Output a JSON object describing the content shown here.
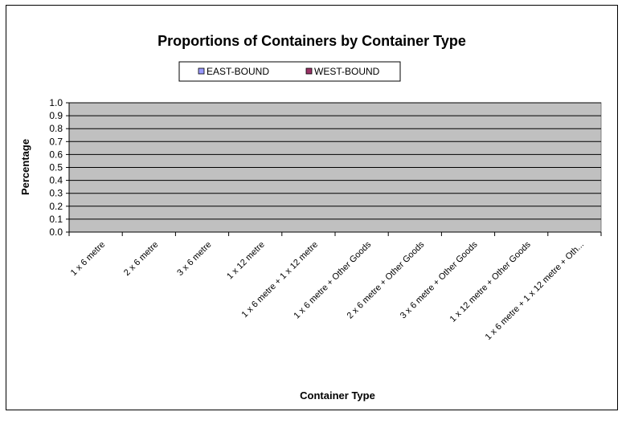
{
  "colors": {
    "plot_area": "#c0c0c0",
    "gridline": "#000000",
    "east_bound": "#9999ff",
    "west_bound": "#993366"
  },
  "chart_data": {
    "type": "bar",
    "title": "Proportions of Containers by Container Type",
    "xlabel": "Container Type",
    "ylabel": "Percentage",
    "ylim": [
      0,
      1
    ],
    "yticks": [
      "0.0",
      "0.1",
      "0.2",
      "0.3",
      "0.4",
      "0.5",
      "0.6",
      "0.7",
      "0.8",
      "0.9",
      "1.0"
    ],
    "categories": [
      "1 x 6 metre",
      "2 x 6 metre",
      "3 x 6 metre",
      "1 x 12 metre",
      "1 x 6 metre + 1 x 12 metre",
      "1 x 6 metre + Other Goods",
      "2 x 6 metre + Other Goods",
      "3 x 6 metre + Other Goods",
      "1 x 12 metre + Other Goods",
      "1 x 6 metre + 1 x 12 metre + Oth..."
    ],
    "series": [
      {
        "name": "EAST-BOUND",
        "color": "#9999ff",
        "values": [
          0,
          0,
          0,
          0,
          0,
          0,
          0,
          0,
          0,
          0
        ]
      },
      {
        "name": "WEST-BOUND",
        "color": "#993366",
        "values": [
          0,
          0,
          0,
          0,
          0,
          0,
          0,
          0,
          0,
          0
        ]
      }
    ],
    "grid": true,
    "legend_position": "top"
  }
}
